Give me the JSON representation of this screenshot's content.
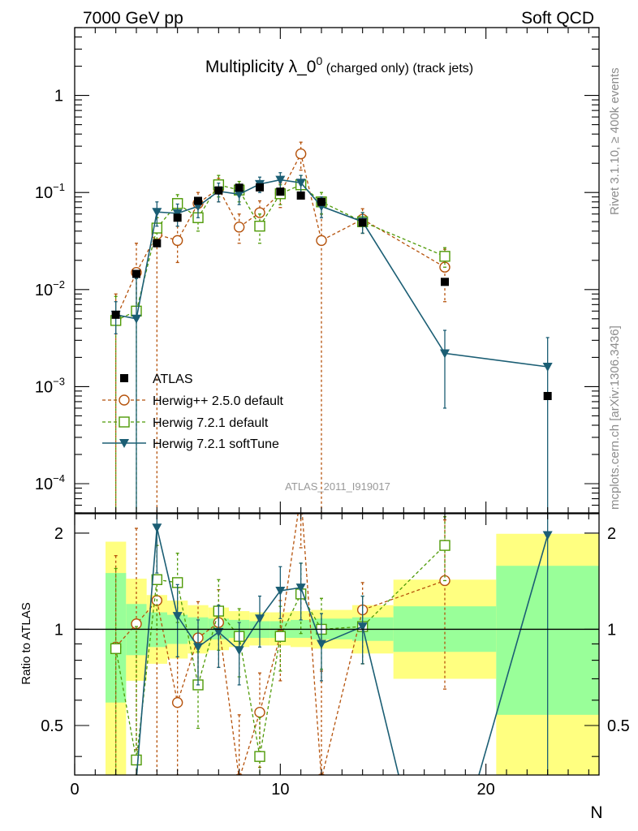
{
  "header": {
    "left": "7000 GeV pp",
    "right": "Soft QCD"
  },
  "side_labels": {
    "rivet": "Rivet 3.1.10, ≥ 400k events",
    "mcplots": "mcplots.cern.ch [arXiv:1306.3436]"
  },
  "colors": {
    "atlas": "#000000",
    "herwigpp": "#b5520b",
    "herwig721": "#4e9a06",
    "softtune": "#1b5e74",
    "band_yellow": "#ffff80",
    "band_green": "#99ff99"
  },
  "chart_data": {
    "type": "scatter",
    "title": "Multiplicity λ_0^0 (charged only) (track jets)",
    "title_main": "Multiplicity λ_0",
    "title_sup": "0",
    "title_suffix": " (charged only) (track jets)",
    "analysis_label": "ATLAS_2011_I919017",
    "xlabel": "N",
    "ylabel": "",
    "ratio_ylabel": "Ratio to ATLAS",
    "xlim": [
      0,
      25.5
    ],
    "ylim": [
      5e-05,
      5
    ],
    "ratio_ylim": [
      0.35,
      2.3
    ],
    "yscale": "log",
    "ratio_yscale": "log",
    "x_tick_labels": [
      "0",
      "10",
      "20"
    ],
    "y_tick_labels": [
      {
        "value": 1,
        "base": "1",
        "exp": ""
      },
      {
        "value": 0.1,
        "base": "10",
        "exp": "−1"
      },
      {
        "value": 0.01,
        "base": "10",
        "exp": "−2"
      },
      {
        "value": 0.001,
        "base": "10",
        "exp": "−3"
      },
      {
        "value": 0.0001,
        "base": "10",
        "exp": "−4"
      }
    ],
    "ratio_tick_labels": [
      {
        "value": 2,
        "label": "2"
      },
      {
        "value": 1,
        "label": "1"
      },
      {
        "value": 0.5,
        "label": "0.5"
      }
    ],
    "legend": {
      "position": "middle-left",
      "entries": [
        "ATLAS",
        "Herwig++ 2.5.0 default",
        "Herwig 7.2.1 default",
        "Herwig 7.2.1 softTune"
      ]
    },
    "atlas": {
      "name": "ATLAS",
      "points": [
        {
          "x": 2,
          "y": 0.0055
        },
        {
          "x": 3,
          "y": 0.0145
        },
        {
          "x": 4,
          "y": 0.03
        },
        {
          "x": 5,
          "y": 0.055
        },
        {
          "x": 6,
          "y": 0.082
        },
        {
          "x": 7,
          "y": 0.105
        },
        {
          "x": 8,
          "y": 0.112
        },
        {
          "x": 9,
          "y": 0.113
        },
        {
          "x": 10,
          "y": 0.102
        },
        {
          "x": 11,
          "y": 0.093
        },
        {
          "x": 12,
          "y": 0.08
        },
        {
          "x": 14,
          "y": 0.049
        },
        {
          "x": 18,
          "y": 0.012
        },
        {
          "x": 23,
          "y": 0.0008
        }
      ]
    },
    "series": [
      {
        "name": "Herwig++ 2.5.0 default",
        "marker": "circle",
        "style": "dashed",
        "points": [
          {
            "x": 2,
            "y": 0.005,
            "lo": 1e-05,
            "hi": 0.009
          },
          {
            "x": 3,
            "y": 0.015,
            "lo": 0.006,
            "hi": 0.03
          },
          {
            "x": 4,
            "y": 0.037,
            "lo": 1e-05,
            "hi": 0.055
          },
          {
            "x": 5,
            "y": 0.032,
            "lo": 0.019,
            "hi": 0.045
          },
          {
            "x": 6,
            "y": 0.077,
            "lo": 0.055,
            "hi": 0.1
          },
          {
            "x": 7,
            "y": 0.11,
            "lo": 0.08,
            "hi": 0.14
          },
          {
            "x": 8,
            "y": 0.044,
            "lo": 0.03,
            "hi": 0.06
          },
          {
            "x": 9,
            "y": 0.062,
            "lo": 0.042,
            "hi": 0.082
          },
          {
            "x": 10,
            "y": 0.098,
            "lo": 0.07,
            "hi": 0.125
          },
          {
            "x": 11,
            "y": 0.25,
            "lo": 0.17,
            "hi": 0.33
          },
          {
            "x": 12,
            "y": 0.032,
            "lo": 1e-05,
            "hi": 0.06
          },
          {
            "x": 14,
            "y": 0.053,
            "lo": 0.038,
            "hi": 0.068
          },
          {
            "x": 18,
            "y": 0.017,
            "lo": 0.0075,
            "hi": 0.026
          }
        ]
      },
      {
        "name": "Herwig 7.2.1 default",
        "marker": "square",
        "style": "dashed",
        "points": [
          {
            "x": 2,
            "y": 0.0048,
            "lo": 1e-05,
            "hi": 0.0085
          },
          {
            "x": 3,
            "y": 0.006,
            "lo": 1e-05,
            "hi": 0.015
          },
          {
            "x": 4,
            "y": 0.043,
            "lo": 0.03,
            "hi": 0.055
          },
          {
            "x": 5,
            "y": 0.077,
            "lo": 0.058,
            "hi": 0.095
          },
          {
            "x": 6,
            "y": 0.055,
            "lo": 0.04,
            "hi": 0.07
          },
          {
            "x": 7,
            "y": 0.12,
            "lo": 0.09,
            "hi": 0.15
          },
          {
            "x": 8,
            "y": 0.106,
            "lo": 0.08,
            "hi": 0.13
          },
          {
            "x": 9,
            "y": 0.045,
            "lo": 0.03,
            "hi": 0.06
          },
          {
            "x": 10,
            "y": 0.097,
            "lo": 0.075,
            "hi": 0.12
          },
          {
            "x": 11,
            "y": 0.12,
            "lo": 0.09,
            "hi": 0.15
          },
          {
            "x": 12,
            "y": 0.08,
            "lo": 0.06,
            "hi": 0.1
          },
          {
            "x": 14,
            "y": 0.05,
            "lo": 0.038,
            "hi": 0.062
          },
          {
            "x": 18,
            "y": 0.022,
            "lo": 0.017,
            "hi": 0.027
          }
        ]
      },
      {
        "name": "Herwig 7.2.1 softTune",
        "marker": "triangle-down",
        "style": "solid",
        "points": [
          {
            "x": 2,
            "y": 0.0055,
            "lo": 0.0035,
            "hi": 0.0075
          },
          {
            "x": 3,
            "y": 0.005,
            "lo": 1e-05,
            "hi": 0.013
          },
          {
            "x": 4,
            "y": 0.063,
            "lo": 0.045,
            "hi": 0.08
          },
          {
            "x": 5,
            "y": 0.061,
            "lo": 0.045,
            "hi": 0.076
          },
          {
            "x": 6,
            "y": 0.072,
            "lo": 0.055,
            "hi": 0.088
          },
          {
            "x": 7,
            "y": 0.103,
            "lo": 0.08,
            "hi": 0.125
          },
          {
            "x": 8,
            "y": 0.096,
            "lo": 0.075,
            "hi": 0.118
          },
          {
            "x": 9,
            "y": 0.122,
            "lo": 0.1,
            "hi": 0.144
          },
          {
            "x": 10,
            "y": 0.135,
            "lo": 0.11,
            "hi": 0.16
          },
          {
            "x": 11,
            "y": 0.126,
            "lo": 0.1,
            "hi": 0.15
          },
          {
            "x": 12,
            "y": 0.072,
            "lo": 0.055,
            "hi": 0.09
          },
          {
            "x": 14,
            "y": 0.05,
            "lo": 0.038,
            "hi": 0.062
          },
          {
            "x": 18,
            "y": 0.0022,
            "lo": 0.0006,
            "hi": 0.0038
          },
          {
            "x": 23,
            "y": 0.0016,
            "lo": 1e-05,
            "hi": 0.0032
          }
        ]
      }
    ],
    "ratio_bands": [
      {
        "x0": 1.5,
        "x1": 2.5,
        "yellow": [
          0.35,
          1.88
        ],
        "green": [
          0.59,
          1.5
        ]
      },
      {
        "x0": 2.5,
        "x1": 3.5,
        "yellow": [
          0.69,
          1.44
        ],
        "green": [
          0.83,
          1.2
        ]
      },
      {
        "x0": 3.5,
        "x1": 4.5,
        "yellow": [
          0.78,
          1.28
        ],
        "green": [
          0.88,
          1.13
        ]
      },
      {
        "x0": 4.5,
        "x1": 5.5,
        "yellow": [
          0.81,
          1.23
        ],
        "green": [
          0.9,
          1.11
        ]
      },
      {
        "x0": 5.5,
        "x1": 6.5,
        "yellow": [
          0.84,
          1.19
        ],
        "green": [
          0.92,
          1.09
        ]
      },
      {
        "x0": 6.5,
        "x1": 7.5,
        "yellow": [
          0.86,
          1.17
        ],
        "green": [
          0.93,
          1.08
        ]
      },
      {
        "x0": 7.5,
        "x1": 8.5,
        "yellow": [
          0.88,
          1.14
        ],
        "green": [
          0.94,
          1.07
        ]
      },
      {
        "x0": 8.5,
        "x1": 9.5,
        "yellow": [
          0.89,
          1.13
        ],
        "green": [
          0.94,
          1.06
        ]
      },
      {
        "x0": 9.5,
        "x1": 10.5,
        "yellow": [
          0.89,
          1.13
        ],
        "green": [
          0.94,
          1.06
        ]
      },
      {
        "x0": 10.5,
        "x1": 11.5,
        "yellow": [
          0.88,
          1.14
        ],
        "green": [
          0.94,
          1.07
        ]
      },
      {
        "x0": 11.5,
        "x1": 13.5,
        "yellow": [
          0.87,
          1.15
        ],
        "green": [
          0.93,
          1.08
        ]
      },
      {
        "x0": 13.5,
        "x1": 15.5,
        "yellow": [
          0.84,
          1.19
        ],
        "green": [
          0.92,
          1.09
        ]
      },
      {
        "x0": 15.5,
        "x1": 20.5,
        "yellow": [
          0.7,
          1.43
        ],
        "green": [
          0.85,
          1.18
        ]
      },
      {
        "x0": 20.5,
        "x1": 25.5,
        "yellow": [
          0.35,
          1.99
        ],
        "green": [
          0.54,
          1.58
        ]
      }
    ],
    "ratio_series": [
      {
        "name": "Herwig++ 2.5.0 default",
        "points": [
          {
            "x": 2,
            "y": 0.88,
            "lo": 0.35,
            "hi": 1.7
          },
          {
            "x": 3,
            "y": 1.04,
            "lo": 0.42,
            "hi": 2.07
          },
          {
            "x": 4,
            "y": 1.23,
            "lo": 0.35,
            "hi": 1.83
          },
          {
            "x": 5,
            "y": 0.59,
            "lo": 0.35,
            "hi": 0.82
          },
          {
            "x": 6,
            "y": 0.94,
            "lo": 0.67,
            "hi": 1.22
          },
          {
            "x": 7,
            "y": 1.05,
            "lo": 0.76,
            "hi": 1.33
          },
          {
            "x": 8,
            "y": 0.34,
            "lo": 0.3,
            "hi": 0.54
          },
          {
            "x": 9,
            "y": 0.55,
            "lo": 0.37,
            "hi": 0.73
          },
          {
            "x": 10,
            "y": 0.96,
            "lo": 0.69,
            "hi": 1.23
          },
          {
            "x": 11,
            "y": 2.65,
            "lo": 1.8,
            "hi": 3.5
          },
          {
            "x": 12,
            "y": 0.34,
            "lo": 0.3,
            "hi": 0.74
          },
          {
            "x": 14,
            "y": 1.15,
            "lo": 0.78,
            "hi": 1.4
          },
          {
            "x": 18,
            "y": 1.42,
            "lo": 0.65,
            "hi": 2.2
          }
        ]
      },
      {
        "name": "Herwig 7.2.1 default",
        "points": [
          {
            "x": 2,
            "y": 0.87,
            "lo": 0.35,
            "hi": 1.55
          },
          {
            "x": 3,
            "y": 0.39,
            "lo": 0.35,
            "hi": 1.02
          },
          {
            "x": 4,
            "y": 1.43,
            "lo": 1.0,
            "hi": 1.83
          },
          {
            "x": 5,
            "y": 1.4,
            "lo": 1.05,
            "hi": 1.73
          },
          {
            "x": 6,
            "y": 0.67,
            "lo": 0.49,
            "hi": 0.85
          },
          {
            "x": 7,
            "y": 1.14,
            "lo": 0.86,
            "hi": 1.43
          },
          {
            "x": 8,
            "y": 0.95,
            "lo": 0.71,
            "hi": 1.16
          },
          {
            "x": 9,
            "y": 0.4,
            "lo": 0.27,
            "hi": 0.53
          },
          {
            "x": 10,
            "y": 0.95,
            "lo": 0.74,
            "hi": 1.18
          },
          {
            "x": 11,
            "y": 1.29,
            "lo": 0.97,
            "hi": 1.61
          },
          {
            "x": 12,
            "y": 1.0,
            "lo": 0.75,
            "hi": 1.25
          },
          {
            "x": 14,
            "y": 1.02,
            "lo": 0.78,
            "hi": 1.27
          },
          {
            "x": 18,
            "y": 1.83,
            "lo": 1.42,
            "hi": 2.25
          }
        ]
      },
      {
        "name": "Herwig 7.2.1 softTune",
        "points": [
          {
            "x": 3,
            "y": 0.34
          },
          {
            "x": 4,
            "y": 2.08,
            "lo": 1.5,
            "hi": 2.67
          },
          {
            "x": 5,
            "y": 1.1,
            "lo": 0.82,
            "hi": 1.38
          },
          {
            "x": 6,
            "y": 0.88,
            "lo": 0.67,
            "hi": 1.07
          },
          {
            "x": 7,
            "y": 0.98,
            "lo": 0.76,
            "hi": 1.19
          },
          {
            "x": 8,
            "y": 0.86,
            "lo": 0.67,
            "hi": 1.05
          },
          {
            "x": 9,
            "y": 1.08,
            "lo": 0.88,
            "hi": 1.27
          },
          {
            "x": 10,
            "y": 1.32,
            "lo": 1.08,
            "hi": 1.57
          },
          {
            "x": 11,
            "y": 1.35,
            "lo": 1.07,
            "hi": 1.61
          },
          {
            "x": 12,
            "y": 0.9,
            "lo": 0.69,
            "hi": 1.12
          },
          {
            "x": 14,
            "y": 1.02,
            "lo": 0.78,
            "hi": 1.27
          },
          {
            "x": 15.8,
            "y": 0.34
          },
          {
            "x": 19.6,
            "y": 0.34
          },
          {
            "x": 23,
            "y": 1.97,
            "lo": 0.3,
            "hi": 4.0
          }
        ]
      }
    ]
  }
}
